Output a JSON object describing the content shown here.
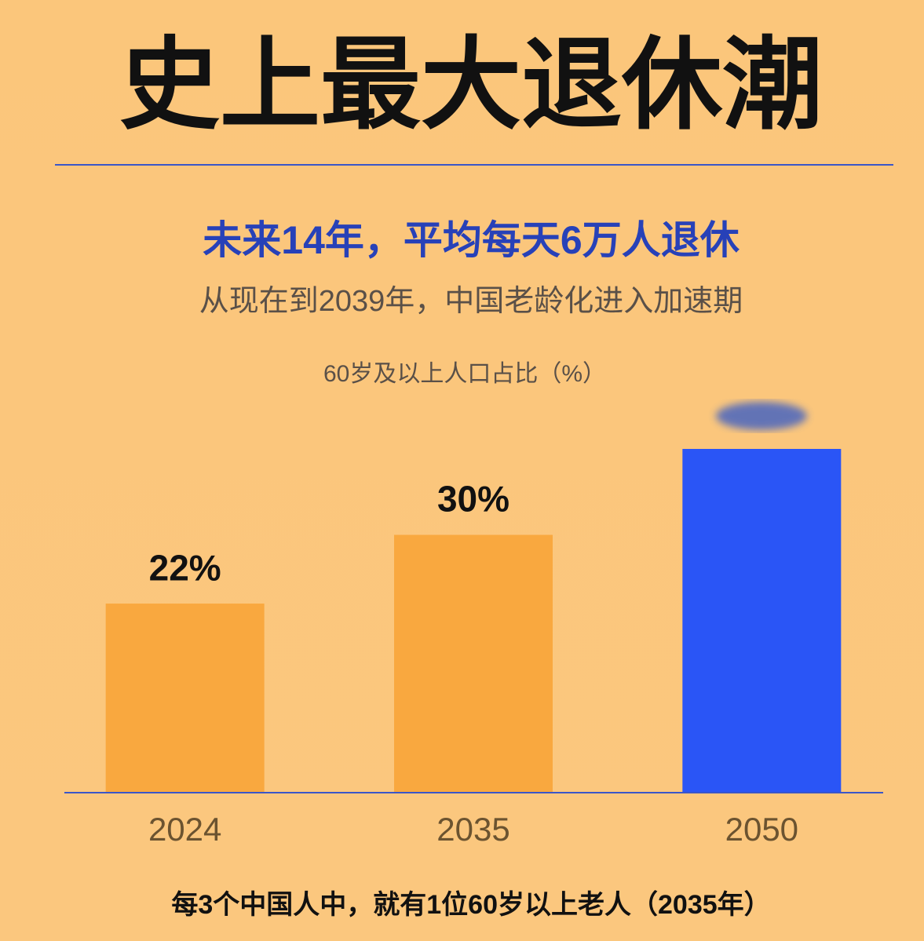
{
  "chart_data": {
    "type": "bar",
    "title": "史上最大退休潮",
    "subtitle": "未来14年，平均每天6万人退休",
    "subtitle2": "从现在到2039年，中国老龄化进入加速期",
    "y_label": "60岁及以上人口占比（%）",
    "footnote": "每3个中国人中，就有1位60岁以上老人（2035年）",
    "categories": [
      "2024",
      "2035",
      "2050"
    ],
    "values": [
      22,
      30,
      40
    ],
    "value_labels": [
      "22%",
      "30%",
      null
    ],
    "colors": [
      "#f9a83f",
      "#f9a83f",
      "#2a55f6"
    ],
    "ylim": [
      0,
      40
    ]
  }
}
